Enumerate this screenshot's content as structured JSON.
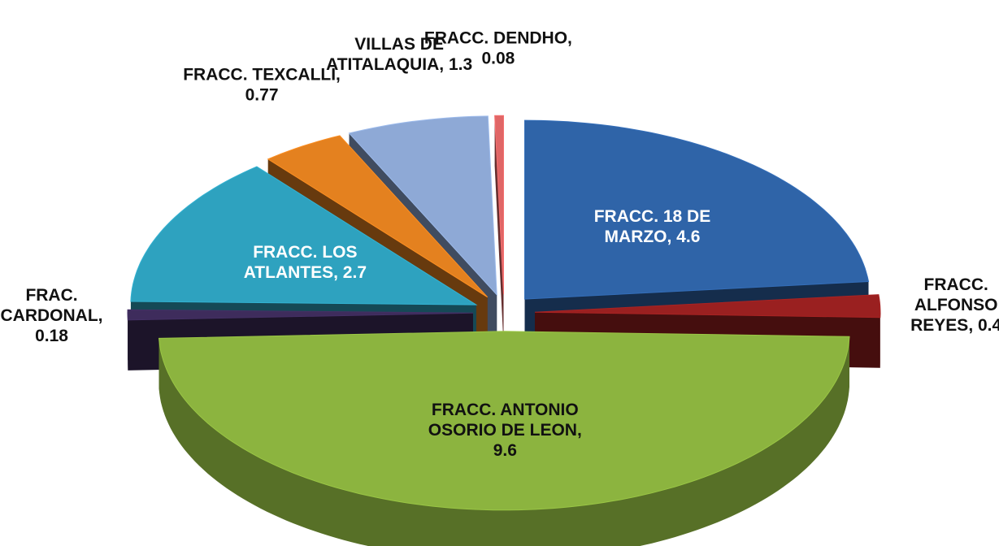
{
  "chart_data": {
    "type": "pie3d",
    "labels": [
      [
        "FRACC. 18 DE",
        "MARZO, 4.6"
      ],
      [
        "FRACC.",
        "ALFONSO",
        "REYES, 0.4"
      ],
      [
        "FRACC. ANTONIO",
        "OSORIO DE LEON,",
        "9.6"
      ],
      [
        "FRAC.",
        "CARDONAL,",
        "0.18"
      ],
      [
        "FRACC. LOS",
        "ATLANTES, 2.7"
      ],
      [
        "FRACC. TEXCALLI,",
        "0.77"
      ],
      [
        "VILLAS DE",
        "ATITALAQUIA, 1.3"
      ],
      [
        "FRACC. DENDHO,",
        "0.08"
      ]
    ],
    "values": [
      4.6,
      0.4,
      9.6,
      0.18,
      2.7,
      0.77,
      1.3,
      0.08
    ],
    "colors": [
      "#2f64a8",
      "#9a2020",
      "#8cb43f",
      "#3e2c5c",
      "#2ea2bf",
      "#e4811f",
      "#8ea9d6",
      "#e06666"
    ]
  }
}
